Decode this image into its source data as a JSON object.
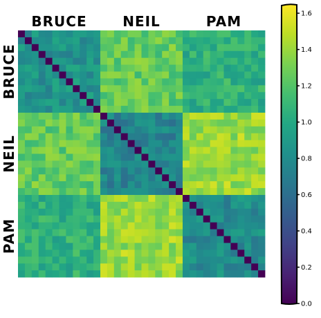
{
  "chart_data": {
    "type": "heatmap",
    "groups": [
      "BRUCE",
      "NEIL",
      "PAM"
    ],
    "units_per_group": 12,
    "n": 36,
    "colormap": "viridis",
    "diagonal_value": 0.0,
    "block_means": [
      [
        0.85,
        1.25,
        1.05
      ],
      [
        1.25,
        0.75,
        1.4
      ],
      [
        1.05,
        1.4,
        0.8
      ]
    ],
    "within_group_range": [
      0.6,
      1.05
    ],
    "between_group_range": [
      1.0,
      1.6
    ],
    "colorbar": {
      "min": 0.0,
      "max": 1.65,
      "ticks": [
        "0.0",
        "0.2",
        "0.4",
        "0.6",
        "0.8",
        "1.0",
        "1.2",
        "1.4",
        "1.6"
      ]
    }
  }
}
